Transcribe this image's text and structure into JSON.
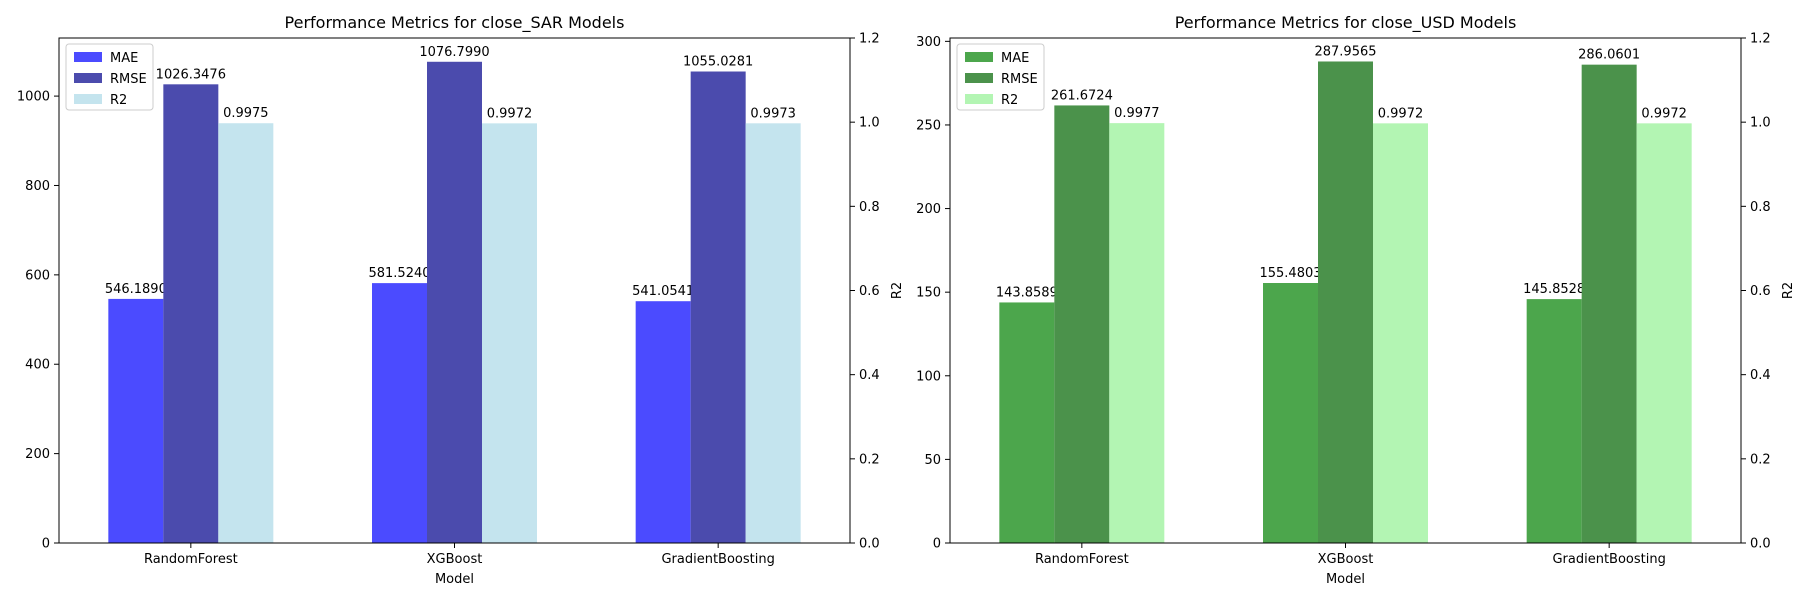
{
  "chart_data": [
    {
      "type": "bar",
      "title": "Performance Metrics for close_SAR Models",
      "xlabel": "Model",
      "ylabel": "",
      "ylabel_right": "R2",
      "categories": [
        "RandomForest",
        "XGBoost",
        "GradientBoosting"
      ],
      "ylim": [
        0,
        1130
      ],
      "y_ticks": [
        0,
        200,
        400,
        600,
        800,
        1000
      ],
      "y2lim": [
        0,
        1.2
      ],
      "y2_ticks": [
        "0.0",
        "0.2",
        "0.4",
        "0.6",
        "0.8",
        "1.0",
        "1.2"
      ],
      "legend_position": "top-left",
      "grid": false,
      "series": [
        {
          "name": "MAE",
          "axis": "left",
          "color": "#4b4bff",
          "values": [
            546.189,
            581.524,
            541.0541
          ],
          "labels": [
            "546.1890",
            "581.5240",
            "541.0541"
          ]
        },
        {
          "name": "RMSE",
          "axis": "left",
          "color": "#4b4bad",
          "values": [
            1026.3476,
            1076.799,
            1055.0281
          ],
          "labels": [
            "1026.3476",
            "1076.7990",
            "1055.0281"
          ]
        },
        {
          "name": "R2",
          "axis": "right",
          "color": "#c4e4ee",
          "values": [
            0.9975,
            0.9972,
            0.9973
          ],
          "labels": [
            "0.9975",
            "0.9972",
            "0.9973"
          ]
        }
      ]
    },
    {
      "type": "bar",
      "title": "Performance Metrics for close_USD Models",
      "xlabel": "Model",
      "ylabel": "",
      "ylabel_right": "R2",
      "categories": [
        "RandomForest",
        "XGBoost",
        "GradientBoosting"
      ],
      "ylim": [
        0,
        302
      ],
      "y_ticks": [
        0,
        50,
        100,
        150,
        200,
        250,
        300
      ],
      "y2lim": [
        0,
        1.2
      ],
      "y2_ticks": [
        "0.0",
        "0.2",
        "0.4",
        "0.6",
        "0.8",
        "1.0",
        "1.2"
      ],
      "legend_position": "top-left",
      "grid": false,
      "series": [
        {
          "name": "MAE",
          "axis": "left",
          "color": "#4ca64c",
          "values": [
            143.8589,
            155.4803,
            145.8528
          ],
          "labels": [
            "143.8589",
            "155.4803",
            "145.8528"
          ]
        },
        {
          "name": "RMSE",
          "axis": "left",
          "color": "#4b924b",
          "values": [
            261.6724,
            287.9565,
            286.0601
          ],
          "labels": [
            "261.6724",
            "287.9565",
            "286.0601"
          ]
        },
        {
          "name": "R2",
          "axis": "right",
          "color": "#b3f5b3",
          "values": [
            0.9977,
            0.9972,
            0.9972
          ],
          "labels": [
            "0.9977",
            "0.9972",
            "0.9972"
          ]
        }
      ]
    }
  ]
}
